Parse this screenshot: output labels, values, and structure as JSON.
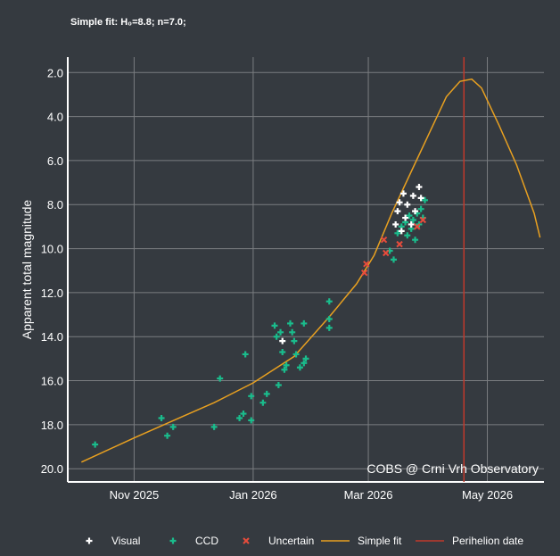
{
  "chart_data": {
    "type": "scatter",
    "title": "Simple fit: H₀=8.8; n=7.0;",
    "xlabel": "",
    "ylabel": "Apparent total magnitude",
    "x_unit": "days since 2025-11-01",
    "xlim": [
      -34,
      210
    ],
    "ylim": [
      20.6,
      1.3
    ],
    "y_inverted": true,
    "grid": true,
    "x_ticks": [
      {
        "value": 0,
        "label": "Nov 2025"
      },
      {
        "value": 61,
        "label": "Jan 2026"
      },
      {
        "value": 120,
        "label": "Mar 2026"
      },
      {
        "value": 181,
        "label": "May 2026"
      }
    ],
    "y_ticks": [
      {
        "value": 2,
        "label": "2.0"
      },
      {
        "value": 4,
        "label": "4.0"
      },
      {
        "value": 6,
        "label": "6.0"
      },
      {
        "value": 8,
        "label": "8.0"
      },
      {
        "value": 10,
        "label": "10.0"
      },
      {
        "value": 12,
        "label": "12.0"
      },
      {
        "value": 14,
        "label": "14.0"
      },
      {
        "value": 16,
        "label": "16.0"
      },
      {
        "value": 18,
        "label": "18.0"
      },
      {
        "value": 20,
        "label": "20.0"
      }
    ],
    "annotation": "COBS @ Crni Vrh Observatory",
    "legend_position": "bottom",
    "colors": {
      "visual": "#ffffff",
      "ccd": "#1abc8c",
      "uncertain": "#e74c3c",
      "fit": "#e8a020",
      "perihelion": "#c0392b",
      "grid": "#7a7d80",
      "axis": "#ffffff"
    },
    "series": [
      {
        "name": "Visual",
        "marker": "plus",
        "points": [
          [
            76,
            14.2
          ],
          [
            135,
            8.3
          ],
          [
            136,
            7.9
          ],
          [
            138,
            7.5
          ],
          [
            139,
            8.6
          ],
          [
            140,
            8.0
          ],
          [
            142,
            8.9
          ],
          [
            143,
            7.6
          ],
          [
            144,
            8.3
          ],
          [
            146,
            7.2
          ],
          [
            147,
            7.7
          ],
          [
            134,
            8.9
          ],
          [
            137,
            9.2
          ]
        ]
      },
      {
        "name": "CCD",
        "marker": "plus",
        "points": [
          [
            -20,
            18.9
          ],
          [
            14,
            17.7
          ],
          [
            17,
            18.5
          ],
          [
            20,
            18.1
          ],
          [
            41,
            18.1
          ],
          [
            44,
            15.9
          ],
          [
            54,
            17.7
          ],
          [
            56,
            17.5
          ],
          [
            57,
            14.8
          ],
          [
            60,
            16.7
          ],
          [
            60,
            17.8
          ],
          [
            66,
            17.0
          ],
          [
            68,
            16.6
          ],
          [
            72,
            13.5
          ],
          [
            73,
            14.0
          ],
          [
            74,
            16.2
          ],
          [
            75,
            13.8
          ],
          [
            76,
            14.7
          ],
          [
            77,
            15.5
          ],
          [
            78,
            15.3
          ],
          [
            80,
            13.4
          ],
          [
            81,
            13.8
          ],
          [
            82,
            14.2
          ],
          [
            83,
            14.8
          ],
          [
            85,
            15.4
          ],
          [
            87,
            15.2
          ],
          [
            88,
            15.0
          ],
          [
            87,
            13.4
          ],
          [
            100,
            12.4
          ],
          [
            100,
            13.2
          ],
          [
            100,
            13.6
          ],
          [
            131,
            10.1
          ],
          [
            133,
            10.5
          ],
          [
            135,
            9.3
          ],
          [
            137,
            9.0
          ],
          [
            139,
            8.8
          ],
          [
            140,
            9.4
          ],
          [
            141,
            8.5
          ],
          [
            142,
            9.1
          ],
          [
            143,
            8.7
          ],
          [
            144,
            9.6
          ],
          [
            145,
            8.4
          ],
          [
            146,
            8.9
          ],
          [
            147,
            8.2
          ],
          [
            148,
            8.6
          ],
          [
            149,
            7.8
          ]
        ]
      },
      {
        "name": "Uncertain",
        "marker": "x",
        "points": [
          [
            118,
            11.1
          ],
          [
            119,
            10.7
          ],
          [
            128,
            9.6
          ],
          [
            129,
            10.2
          ],
          [
            136,
            9.8
          ],
          [
            145,
            9.0
          ],
          [
            148,
            8.7
          ]
        ]
      }
    ],
    "fit": {
      "name": "Simple fit",
      "points": [
        [
          -27,
          19.7
        ],
        [
          0,
          18.6
        ],
        [
          23,
          17.7
        ],
        [
          41,
          17.0
        ],
        [
          61,
          16.1
        ],
        [
          82,
          14.9
        ],
        [
          100,
          13.1
        ],
        [
          114,
          11.6
        ],
        [
          123,
          10.3
        ],
        [
          132,
          8.4
        ],
        [
          142,
          6.5
        ],
        [
          151,
          4.8
        ],
        [
          160,
          3.1
        ],
        [
          167,
          2.4
        ],
        [
          173,
          2.3
        ],
        [
          178,
          2.7
        ],
        [
          187,
          4.4
        ],
        [
          196,
          6.2
        ],
        [
          205,
          8.4
        ],
        [
          208,
          9.5
        ]
      ]
    },
    "perihelion": {
      "name": "Perihelion date",
      "day": 169
    },
    "legend": [
      "Visual",
      "CCD",
      "Uncertain",
      "Simple fit",
      "Perihelion date"
    ]
  }
}
